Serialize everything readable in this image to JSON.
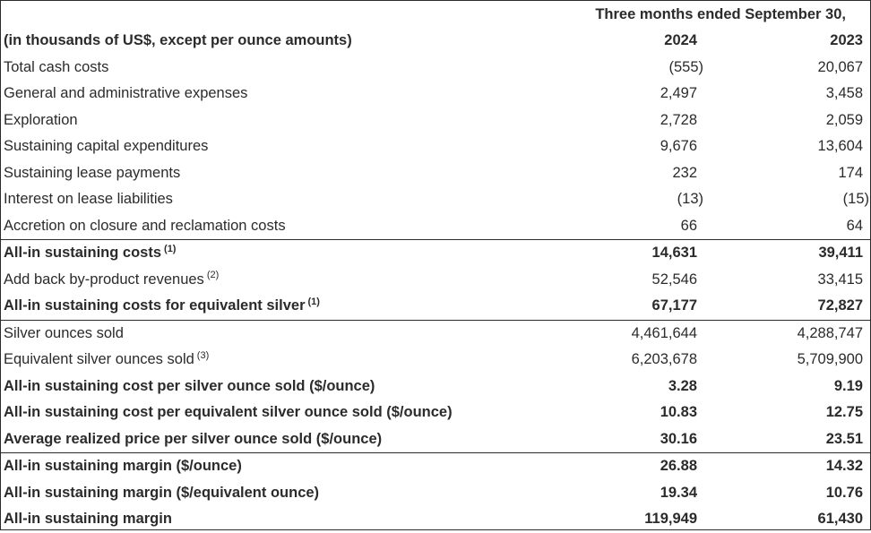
{
  "header": {
    "period": "Three months ended September 30,",
    "units": "(in thousands of US$, except per ounce amounts)",
    "year_a": "2024",
    "year_b": "2023"
  },
  "rows": [
    {
      "label": "Total cash costs",
      "sup": "",
      "v2024": "(555)",
      "v2023": "20,067"
    },
    {
      "label": "General and administrative expenses",
      "sup": "",
      "v2024": "2,497",
      "v2023": "3,458"
    },
    {
      "label": "Exploration",
      "sup": "",
      "v2024": "2,728",
      "v2023": "2,059"
    },
    {
      "label": "Sustaining capital expenditures",
      "sup": "",
      "v2024": "9,676",
      "v2023": "13,604"
    },
    {
      "label": "Sustaining lease payments",
      "sup": "",
      "v2024": "232",
      "v2023": "174"
    },
    {
      "label": "Interest on lease liabilities",
      "sup": "",
      "v2024": "(13)",
      "v2023": "(15)"
    },
    {
      "label": "Accretion on closure and reclamation costs",
      "sup": "",
      "v2024": "66",
      "v2023": "64"
    },
    {
      "label": "All-in sustaining costs",
      "sup": "(1)",
      "v2024": "14,631",
      "v2023": "39,411"
    },
    {
      "label": "Add back by-product revenues",
      "sup": "(2)",
      "v2024": "52,546",
      "v2023": "33,415"
    },
    {
      "label": "All-in sustaining costs for equivalent silver",
      "sup": "(1)",
      "v2024": "67,177",
      "v2023": "72,827"
    },
    {
      "label": "Silver ounces sold",
      "sup": "",
      "v2024": "4,461,644",
      "v2023": "4,288,747"
    },
    {
      "label": "Equivalent silver ounces sold",
      "sup": "(3)",
      "v2024": "6,203,678",
      "v2023": "5,709,900"
    },
    {
      "label": "All-in sustaining cost per silver ounce sold ($/ounce)",
      "sup": "",
      "v2024": "3.28",
      "v2023": "9.19"
    },
    {
      "label": "All-in sustaining cost per equivalent silver ounce sold ($/ounce)",
      "sup": "",
      "v2024": "10.83",
      "v2023": "12.75"
    },
    {
      "label": "Average realized price per silver ounce sold ($/ounce)",
      "sup": "",
      "v2024": "30.16",
      "v2023": "23.51"
    },
    {
      "label": "All-in sustaining margin ($/ounce)",
      "sup": "",
      "v2024": "26.88",
      "v2023": "14.32"
    },
    {
      "label": "All-in sustaining margin ($/equivalent ounce)",
      "sup": "",
      "v2024": "19.34",
      "v2023": "10.76"
    },
    {
      "label": "All-in sustaining margin",
      "sup": "",
      "v2024": "119,949",
      "v2023": "61,430"
    }
  ]
}
